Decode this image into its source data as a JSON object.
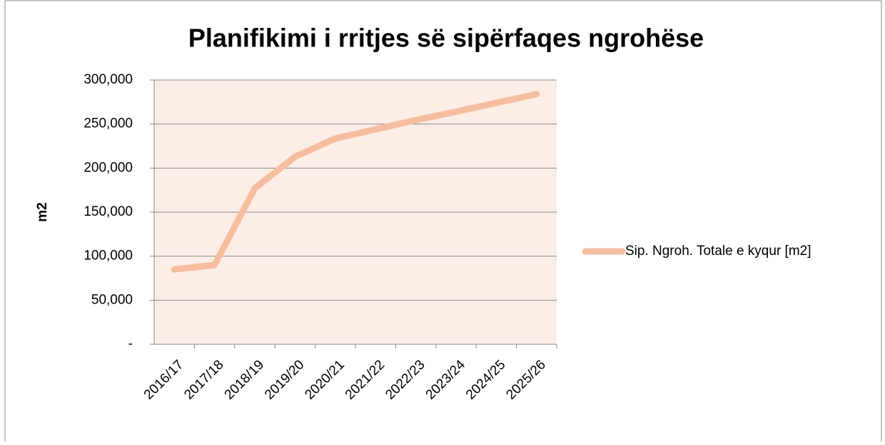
{
  "chart_data": {
    "type": "line",
    "title": "Planifikimi i rritjes së sipërfaqes ngrohëse",
    "y_label": "m2",
    "categories": [
      "2016/17",
      "2017/18",
      "2018/19",
      "2019/20",
      "2020/21",
      "2021/22",
      "2022/23",
      "2023/24",
      "2024/25",
      "2025/26"
    ],
    "series": [
      {
        "name": "Sip. Ngroh. Totale e kyqur [m2]",
        "color": "#f6be9f",
        "values": [
          85000,
          90000,
          177000,
          213000,
          233500,
          244000,
          254500,
          264000,
          274000,
          284000
        ]
      }
    ],
    "ylim": [
      0,
      300000
    ],
    "yticks": [
      {
        "value": 0,
        "label": "-"
      },
      {
        "value": 50000,
        "label": "50,000"
      },
      {
        "value": 100000,
        "label": "100,000"
      },
      {
        "value": 150000,
        "label": "150,000"
      },
      {
        "value": 200000,
        "label": "200,000"
      },
      {
        "value": 250000,
        "label": "250,000"
      },
      {
        "value": 300000,
        "label": "300,000"
      }
    ],
    "grid": true,
    "legend": "right",
    "plot_background": "#fdede7"
  }
}
